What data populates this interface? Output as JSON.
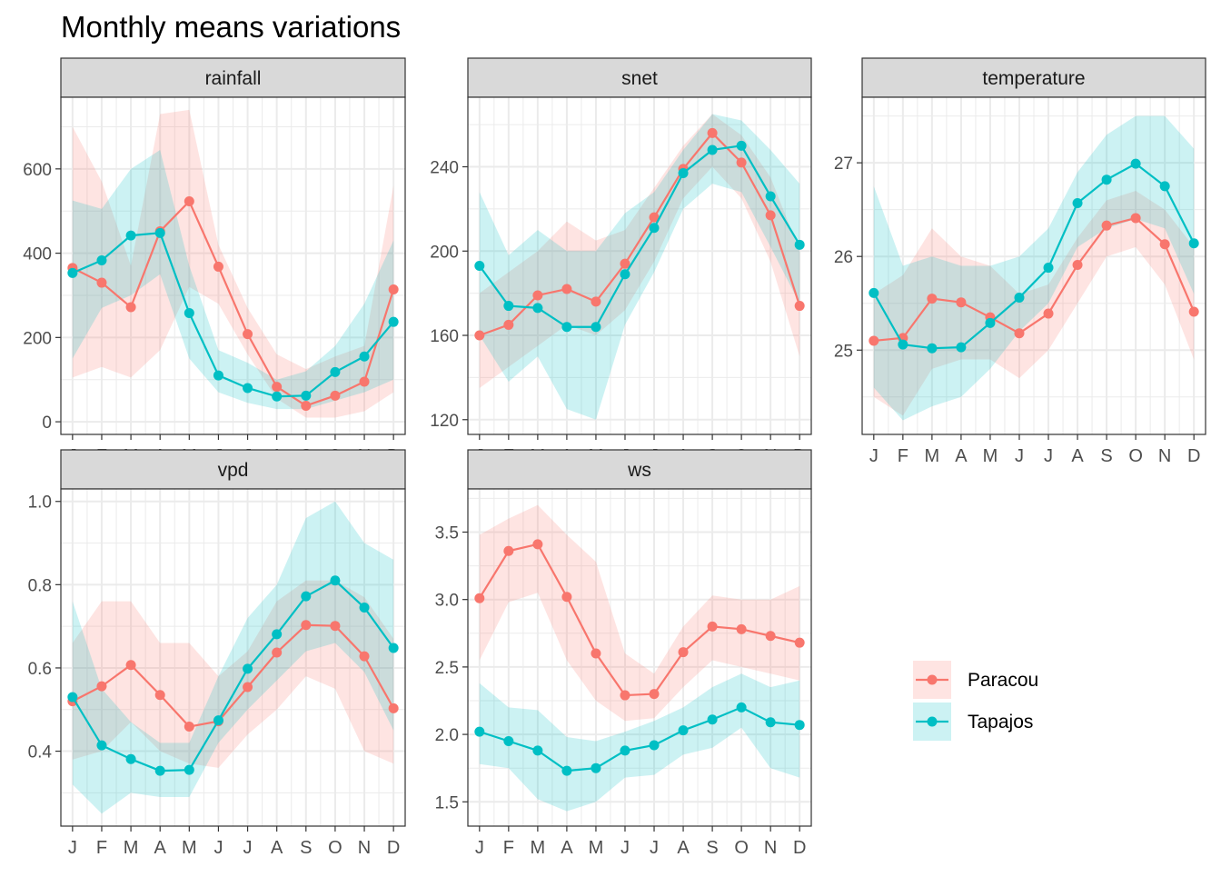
{
  "title": "Monthly means variations",
  "colors": {
    "Paracou": "#F8766D",
    "Tapajos": "#00BFC4",
    "strip_fill": "#D9D9D9",
    "grid": "#EBEBEB",
    "text": "#4D4D4D"
  },
  "legend": {
    "position": "right",
    "items": [
      {
        "label": "Paracou",
        "color": "#F8766D"
      },
      {
        "label": "Tapajos",
        "color": "#00BFC4"
      }
    ]
  },
  "chart_data": [
    {
      "type": "line",
      "panel": "rainfall",
      "x": [
        1,
        2,
        3,
        4,
        5,
        6,
        7,
        8,
        9,
        10,
        11,
        12
      ],
      "x_tick_labels": [
        "J",
        "F",
        "M",
        "A",
        "M",
        "J",
        "J",
        "A",
        "S",
        "O",
        "N",
        "D"
      ],
      "x_ticks": [
        1,
        2,
        3,
        4,
        5,
        6,
        7,
        8,
        9,
        10,
        11,
        12
      ],
      "ylim": [
        -30,
        770
      ],
      "y_ticks": [
        0,
        200,
        400,
        600
      ],
      "series": [
        {
          "name": "Paracou",
          "values": [
            365,
            330,
            272,
            452,
            523,
            368,
            208,
            83,
            38,
            62,
            95,
            314
          ],
          "lower": [
            105,
            130,
            105,
            170,
            320,
            280,
            160,
            55,
            10,
            10,
            25,
            70
          ],
          "upper": [
            700,
            570,
            370,
            730,
            740,
            420,
            270,
            160,
            125,
            155,
            180,
            560
          ]
        },
        {
          "name": "Tapajos",
          "values": [
            353,
            383,
            442,
            448,
            258,
            110,
            80,
            60,
            62,
            118,
            155,
            237
          ],
          "lower": [
            150,
            270,
            300,
            350,
            150,
            70,
            45,
            30,
            30,
            50,
            70,
            100
          ],
          "upper": [
            525,
            505,
            600,
            645,
            370,
            170,
            140,
            100,
            120,
            180,
            280,
            430
          ]
        }
      ]
    },
    {
      "type": "line",
      "panel": "snet",
      "x": [
        1,
        2,
        3,
        4,
        5,
        6,
        7,
        8,
        9,
        10,
        11,
        12
      ],
      "x_tick_labels": [
        "J",
        "F",
        "M",
        "A",
        "M",
        "J",
        "J",
        "A",
        "S",
        "O",
        "N",
        "D"
      ],
      "x_ticks": [
        1,
        2,
        3,
        4,
        5,
        6,
        7,
        8,
        9,
        10,
        11,
        12
      ],
      "ylim": [
        113,
        273
      ],
      "y_ticks": [
        120,
        160,
        200,
        240
      ],
      "series": [
        {
          "name": "Paracou",
          "values": [
            160,
            165,
            179,
            182,
            176,
            194,
            216,
            239,
            256,
            242,
            217,
            174
          ],
          "lower": [
            135,
            145,
            155,
            165,
            160,
            172,
            195,
            225,
            240,
            225,
            195,
            150
          ],
          "upper": [
            180,
            190,
            200,
            214,
            205,
            210,
            230,
            250,
            265,
            255,
            235,
            200
          ]
        },
        {
          "name": "Tapajos",
          "values": [
            193,
            174,
            173,
            164,
            164,
            189,
            211,
            237,
            248,
            250,
            226,
            203
          ],
          "lower": [
            160,
            138,
            150,
            125,
            120,
            165,
            190,
            220,
            232,
            228,
            202,
            175
          ],
          "upper": [
            228,
            198,
            210,
            200,
            200,
            218,
            228,
            248,
            265,
            262,
            248,
            232
          ]
        }
      ]
    },
    {
      "type": "line",
      "panel": "temperature",
      "x": [
        1,
        2,
        3,
        4,
        5,
        6,
        7,
        8,
        9,
        10,
        11,
        12
      ],
      "x_tick_labels": [
        "J",
        "F",
        "M",
        "A",
        "M",
        "J",
        "J",
        "A",
        "S",
        "O",
        "N",
        "D"
      ],
      "x_ticks": [
        1,
        2,
        3,
        4,
        5,
        6,
        7,
        8,
        9,
        10,
        11,
        12
      ],
      "ylim": [
        24.1,
        27.7
      ],
      "y_ticks": [
        25,
        26,
        27
      ],
      "series": [
        {
          "name": "Paracou",
          "values": [
            25.1,
            25.13,
            25.55,
            25.51,
            25.35,
            25.18,
            25.39,
            25.91,
            26.33,
            26.41,
            26.13,
            25.41
          ],
          "lower": [
            24.5,
            24.3,
            24.8,
            24.9,
            24.9,
            24.7,
            25.0,
            25.5,
            26.0,
            26.1,
            25.7,
            24.9
          ],
          "upper": [
            25.6,
            25.8,
            26.3,
            26.0,
            25.9,
            25.6,
            25.7,
            26.2,
            26.6,
            26.7,
            26.5,
            26.1
          ]
        },
        {
          "name": "Tapajos",
          "values": [
            25.61,
            25.06,
            25.02,
            25.03,
            25.29,
            25.56,
            25.88,
            26.57,
            26.82,
            26.99,
            26.75,
            26.14
          ],
          "lower": [
            24.6,
            24.25,
            24.4,
            24.5,
            24.8,
            25.2,
            25.5,
            26.1,
            26.3,
            26.4,
            26.3,
            25.6
          ],
          "upper": [
            26.75,
            25.9,
            26.0,
            25.9,
            25.9,
            26.0,
            26.3,
            26.9,
            27.3,
            27.5,
            27.5,
            27.15
          ]
        }
      ]
    },
    {
      "type": "line",
      "panel": "vpd",
      "x": [
        1,
        2,
        3,
        4,
        5,
        6,
        7,
        8,
        9,
        10,
        11,
        12
      ],
      "x_tick_labels": [
        "J",
        "F",
        "M",
        "A",
        "M",
        "J",
        "J",
        "A",
        "S",
        "O",
        "N",
        "D"
      ],
      "x_ticks": [
        1,
        2,
        3,
        4,
        5,
        6,
        7,
        8,
        9,
        10,
        11,
        12
      ],
      "ylim": [
        0.22,
        1.03
      ],
      "y_ticks": [
        0.4,
        0.6,
        0.8,
        1.0
      ],
      "series": [
        {
          "name": "Paracou",
          "values": [
            0.52,
            0.556,
            0.607,
            0.535,
            0.459,
            0.472,
            0.554,
            0.637,
            0.703,
            0.701,
            0.628,
            0.503
          ],
          "lower": [
            0.38,
            0.4,
            0.47,
            0.4,
            0.37,
            0.36,
            0.44,
            0.5,
            0.58,
            0.55,
            0.4,
            0.37
          ],
          "upper": [
            0.66,
            0.76,
            0.76,
            0.66,
            0.66,
            0.58,
            0.64,
            0.76,
            0.81,
            0.81,
            0.77,
            0.67
          ]
        },
        {
          "name": "Tapajos",
          "values": [
            0.53,
            0.414,
            0.381,
            0.353,
            0.355,
            0.474,
            0.598,
            0.681,
            0.772,
            0.81,
            0.745,
            0.648
          ],
          "lower": [
            0.32,
            0.25,
            0.3,
            0.29,
            0.29,
            0.42,
            0.5,
            0.57,
            0.64,
            0.66,
            0.59,
            0.45
          ],
          "upper": [
            0.76,
            0.55,
            0.47,
            0.42,
            0.42,
            0.58,
            0.72,
            0.8,
            0.96,
            1.0,
            0.9,
            0.86
          ]
        }
      ]
    },
    {
      "type": "line",
      "panel": "ws",
      "x": [
        1,
        2,
        3,
        4,
        5,
        6,
        7,
        8,
        9,
        10,
        11,
        12
      ],
      "x_tick_labels": [
        "J",
        "F",
        "M",
        "A",
        "M",
        "J",
        "J",
        "A",
        "S",
        "O",
        "N",
        "D"
      ],
      "x_ticks": [
        1,
        2,
        3,
        4,
        5,
        6,
        7,
        8,
        9,
        10,
        11,
        12
      ],
      "ylim": [
        1.32,
        3.82
      ],
      "y_ticks": [
        1.5,
        2.0,
        2.5,
        3.0,
        3.5
      ],
      "series": [
        {
          "name": "Paracou",
          "values": [
            3.01,
            3.36,
            3.41,
            3.02,
            2.6,
            2.29,
            2.3,
            2.61,
            2.8,
            2.78,
            2.73,
            2.68
          ],
          "lower": [
            2.55,
            2.98,
            3.05,
            2.55,
            2.25,
            2.1,
            2.12,
            2.35,
            2.55,
            2.5,
            2.45,
            2.4
          ],
          "upper": [
            3.48,
            3.6,
            3.7,
            3.48,
            3.28,
            2.6,
            2.45,
            2.8,
            3.03,
            3.0,
            3.0,
            3.1
          ]
        },
        {
          "name": "Tapajos",
          "values": [
            2.02,
            1.95,
            1.88,
            1.73,
            1.75,
            1.88,
            1.92,
            2.03,
            2.11,
            2.2,
            2.09,
            2.07
          ],
          "lower": [
            1.78,
            1.75,
            1.52,
            1.43,
            1.5,
            1.68,
            1.7,
            1.85,
            1.9,
            2.05,
            1.75,
            1.68
          ],
          "upper": [
            2.38,
            2.2,
            2.18,
            1.98,
            1.95,
            2.02,
            2.1,
            2.2,
            2.35,
            2.45,
            2.35,
            2.4
          ]
        }
      ]
    }
  ]
}
